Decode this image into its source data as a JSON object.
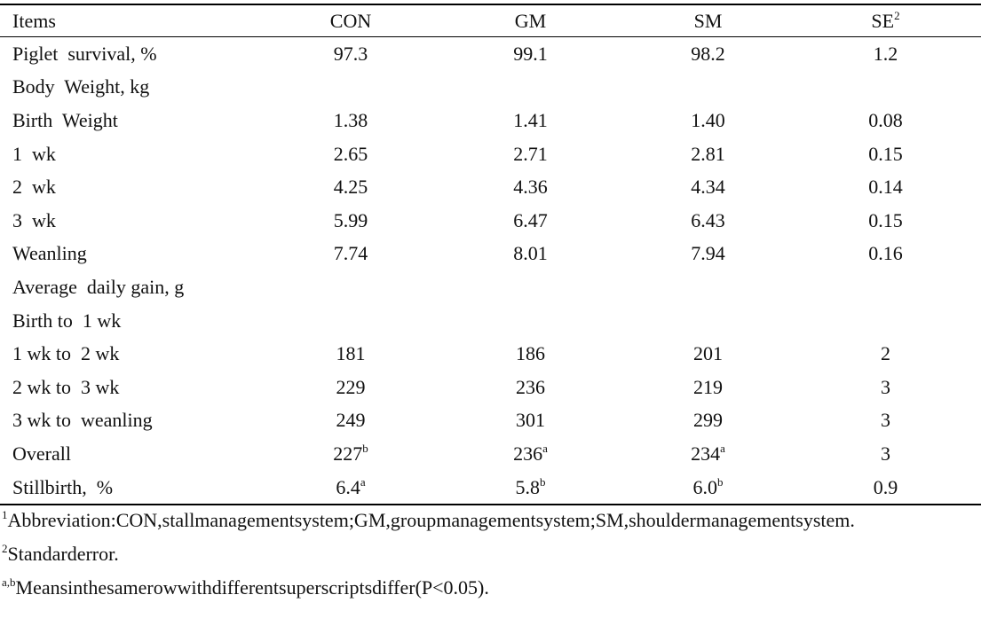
{
  "table": {
    "header": [
      "Items",
      "CON",
      "GM",
      "SM",
      {
        "text": "SE",
        "sup": "2"
      }
    ],
    "rows": [
      [
        "Piglet  survival, %",
        "97.3",
        "99.1",
        "98.2",
        "1.2"
      ],
      [
        "Body  Weight, kg",
        null,
        null,
        null,
        null
      ],
      [
        "Birth  Weight",
        "1.38",
        "1.41",
        "1.40",
        "0.08"
      ],
      [
        "1  wk",
        "2.65",
        "2.71",
        "2.81",
        "0.15"
      ],
      [
        "2  wk",
        "4.25",
        "4.36",
        "4.34",
        "0.14"
      ],
      [
        "3  wk",
        "5.99",
        "6.47",
        "6.43",
        "0.15"
      ],
      [
        "Weanling",
        "7.74",
        "8.01",
        "7.94",
        "0.16"
      ],
      [
        "Average  daily gain, g",
        null,
        null,
        null,
        null
      ],
      [
        "Birth to  1 wk",
        null,
        null,
        null,
        null
      ],
      [
        "1 wk to  2 wk",
        "181",
        "186",
        "201",
        "2"
      ],
      [
        "2 wk to  3 wk",
        "229",
        "236",
        "219",
        "3"
      ],
      [
        "3 wk to  weanling",
        "249",
        "301",
        "299",
        "3"
      ],
      [
        "Overall",
        {
          "text": "227",
          "sup": "b"
        },
        {
          "text": "236",
          "sup": "a"
        },
        {
          "text": "234",
          "sup": "a"
        },
        "3"
      ],
      [
        "Stillbirth,  %",
        {
          "text": "6.4",
          "sup": "a"
        },
        {
          "text": "5.8",
          "sup": "b"
        },
        {
          "text": "6.0",
          "sup": "b"
        },
        "0.9"
      ]
    ]
  },
  "footnotes": [
    {
      "sup": "1",
      "text": "Abbreviation:CON,stallmanagementsystem;GM,groupmanagementsystem;SM,shouldermanagementsystem."
    },
    {
      "sup": "2",
      "text": "Standarderror."
    },
    {
      "sup": "a,b",
      "text": "Meansinthesamerowwithdifferentsuperscriptsdiffer(P<0.05)."
    }
  ]
}
